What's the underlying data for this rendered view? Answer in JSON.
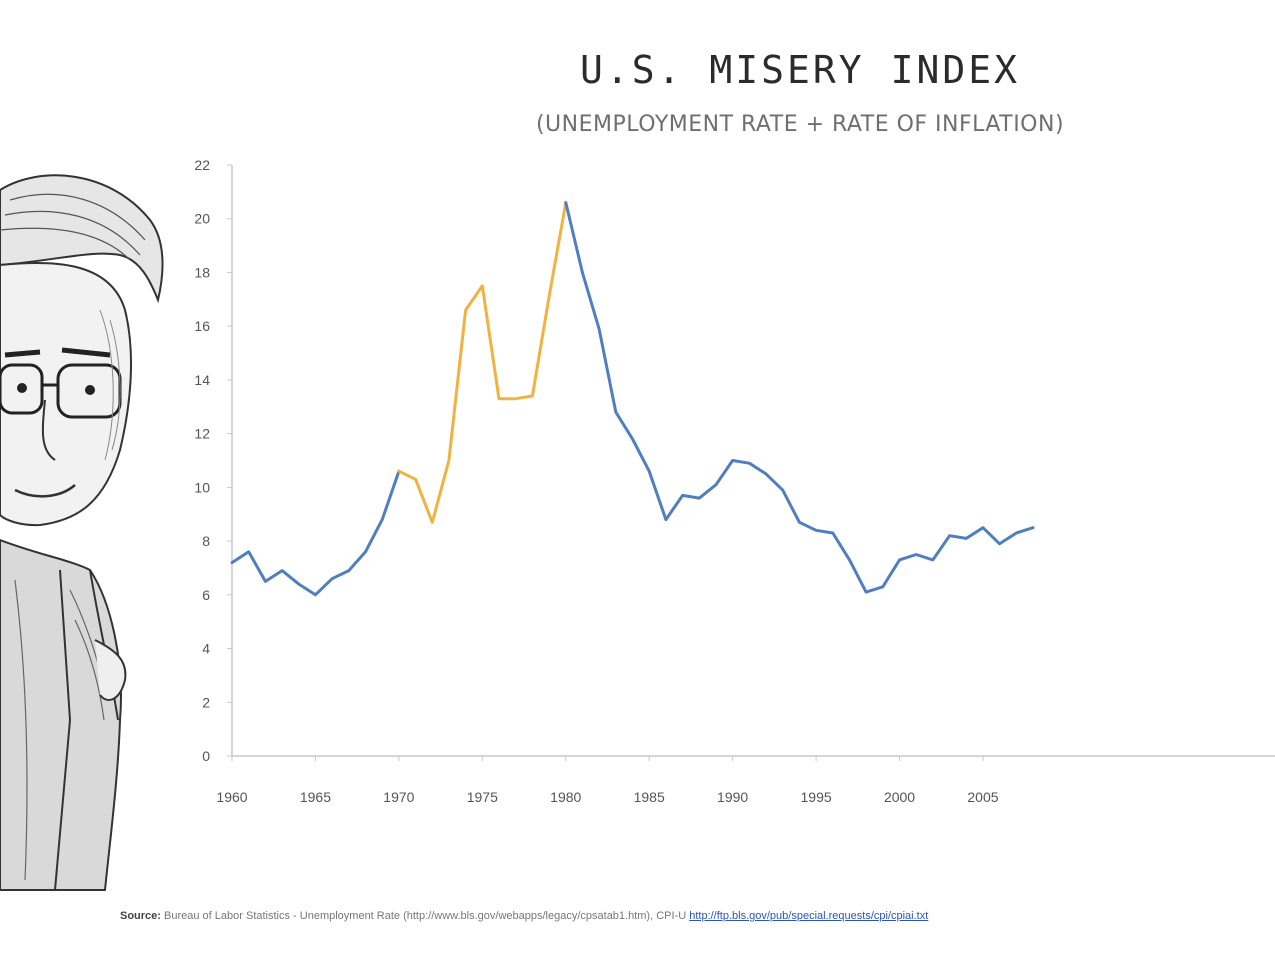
{
  "chart_data": {
    "type": "line",
    "title": "U.S. MISERY INDEX",
    "subtitle": "(UNEMPLOYMENT RATE + RATE OF INFLATION)",
    "xlabel": "",
    "ylabel": "",
    "xlim": [
      1960,
      2022.5
    ],
    "ylim": [
      0,
      22
    ],
    "x_ticks": [
      "1960",
      "1965",
      "1970",
      "1975",
      "1980",
      "1985",
      "1990",
      "1995",
      "2000",
      "2005"
    ],
    "y_ticks": [
      "0",
      "2",
      "4",
      "6",
      "8",
      "10",
      "12",
      "14",
      "16",
      "18",
      "20",
      "22"
    ],
    "grid": false,
    "legend": "none",
    "series": [
      {
        "color": "#4f7fbf",
        "x": [
          1960,
          1961,
          1962,
          1963,
          1964,
          1965,
          1966,
          1967,
          1968,
          1969,
          1970
        ],
        "y": [
          7.2,
          7.6,
          6.5,
          6.9,
          6.4,
          6.0,
          6.6,
          6.9,
          7.6,
          8.8,
          10.6
        ]
      },
      {
        "color": "#f0b340",
        "x": [
          1970,
          1971,
          1972,
          1973,
          1974,
          1975,
          1976,
          1977,
          1978,
          1979,
          1980
        ],
        "y": [
          10.6,
          10.3,
          8.7,
          11.0,
          16.6,
          17.5,
          13.3,
          13.3,
          13.4,
          17.1,
          20.6
        ]
      },
      {
        "color": "#4f7fbf",
        "x": [
          1980,
          1981,
          1982,
          1983,
          1984,
          1985,
          1986,
          1987,
          1988,
          1989,
          1990,
          1991,
          1992,
          1993,
          1994,
          1995,
          1996,
          1997,
          1998,
          1999,
          2000,
          2001,
          2002,
          2003,
          2004,
          2005,
          2006,
          2007,
          2008
        ],
        "y": [
          20.6,
          18.0,
          15.9,
          12.8,
          11.8,
          10.6,
          8.8,
          9.7,
          9.6,
          10.1,
          11.0,
          10.9,
          10.5,
          9.9,
          8.7,
          8.4,
          8.3,
          7.3,
          6.1,
          6.3,
          7.3,
          7.5,
          7.3,
          8.2,
          8.1,
          8.5,
          7.9,
          8.3,
          8.5
        ]
      }
    ]
  },
  "source_label": "Source:",
  "source_text": "Bureau of Labor Statistics - Unemployment Rate (http://www.bls.gov/webapps/legacy/cpsatab1.htm), CPI-U",
  "source_link": "http://ftp.bls.gov/pub/special.requests/cpi/cpiai.txt"
}
